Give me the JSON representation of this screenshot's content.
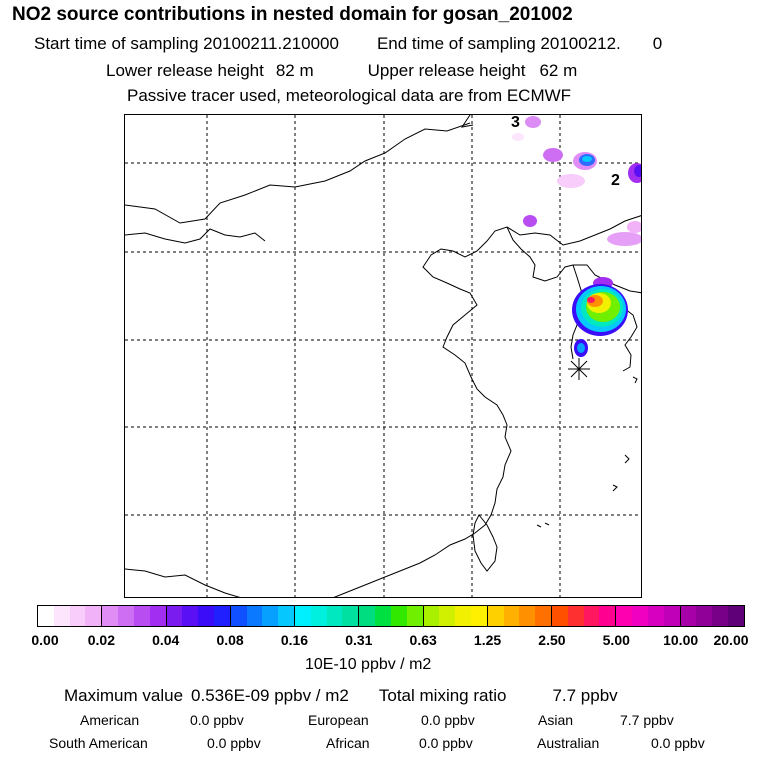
{
  "header": {
    "title": "NO2 source contributions in nested domain for gosan_201002",
    "start_label": "Start time of sampling 20100211.210000",
    "end_label": "End time of sampling 20100212.",
    "end_hour": "0",
    "lower_label": "Lower release height",
    "lower_value": "82 m",
    "upper_label": "Upper release height",
    "upper_value": "62 m",
    "note": "Passive tracer used, meteorological data are from ECMWF"
  },
  "map": {
    "contour_labels": [
      "3",
      "2"
    ],
    "receptor_marker": "star"
  },
  "colorbar": {
    "ticks": [
      "0.00",
      "0.02",
      "0.04",
      "0.08",
      "0.16",
      "0.31",
      "0.63",
      "1.25",
      "2.50",
      "5.00",
      "10.00",
      "20.00"
    ],
    "colors": [
      "#ffffff",
      "#fde6fd",
      "#f8ccfb",
      "#f1b2f8",
      "#e08ef5",
      "#cd6ef3",
      "#b84ef2",
      "#a22ef2",
      "#7a1cf0",
      "#5a10f4",
      "#3a0cf8",
      "#2020ff",
      "#1050ff",
      "#0a78ff",
      "#08a0ff",
      "#06c8ff",
      "#00f0ff",
      "#00f0e0",
      "#00e8c0",
      "#00e0a0",
      "#00dc80",
      "#00e040",
      "#30e800",
      "#70f000",
      "#a8f000",
      "#d0f000",
      "#f0f000",
      "#fff000",
      "#ffd000",
      "#ffb000",
      "#ff9000",
      "#ff7000",
      "#ff5000",
      "#ff3030",
      "#ff1860",
      "#ff0090",
      "#ff00b0",
      "#f000c0",
      "#d800c0",
      "#c000b8",
      "#a800a8",
      "#900098",
      "#780088",
      "#600078"
    ],
    "units": "10E-10 ppbv / m2"
  },
  "summary": {
    "max_label": "Maximum value",
    "max_value": "0.536E-09 ppbv / m2",
    "total_label": "Total mixing ratio",
    "total_value": "7.7 ppbv"
  },
  "regions": [
    {
      "name": "American",
      "value": "0.0 ppbv"
    },
    {
      "name": "European",
      "value": "0.0 ppbv"
    },
    {
      "name": "Asian",
      "value": "7.7 ppbv"
    },
    {
      "name": "South American",
      "value": "0.0 ppbv"
    },
    {
      "name": "African",
      "value": "0.0 ppbv"
    },
    {
      "name": "Australian",
      "value": "0.0 ppbv"
    }
  ]
}
